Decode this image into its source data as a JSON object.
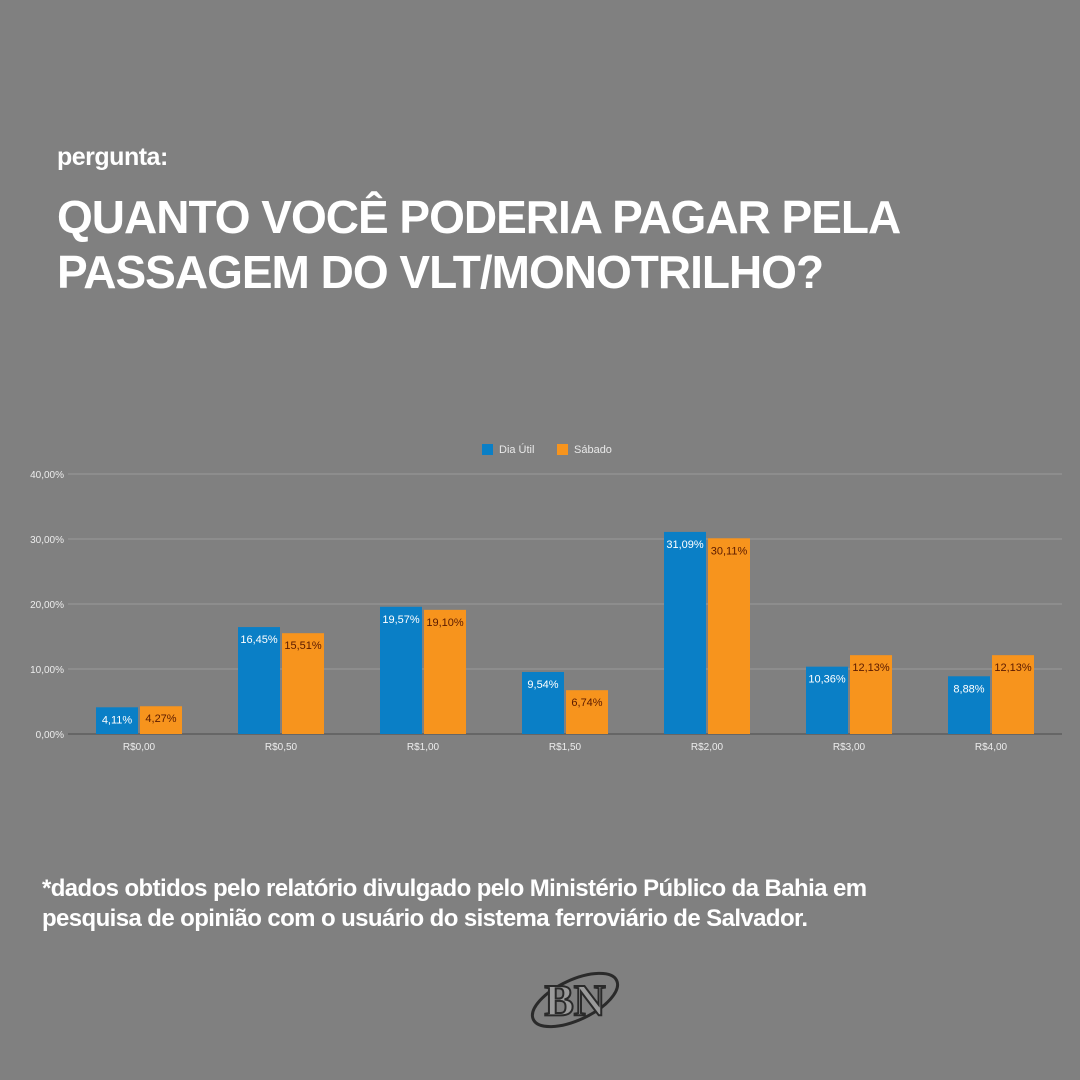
{
  "header": {
    "eyebrow": "pergunta:",
    "title_line1": "QUANTO VOCÊ PODERIA PAGAR PELA",
    "title_line2": "PASSAGEM DO VLT/MONOTRILHO?"
  },
  "chart_data": {
    "type": "bar",
    "title": "",
    "xlabel": "",
    "ylabel": "",
    "categories": [
      "R$0,00",
      "R$0,50",
      "R$1,00",
      "R$1,50",
      "R$2,00",
      "R$3,00",
      "R$4,00"
    ],
    "series": [
      {
        "name": "Dia Útil",
        "color": "#0a7fc6",
        "label_color": "#ffffff",
        "values": [
          4.11,
          16.45,
          19.57,
          9.54,
          31.09,
          10.36,
          8.88
        ],
        "labels": [
          "4,11%",
          "16,45%",
          "19,57%",
          "9,54%",
          "31,09%",
          "10,36%",
          "8,88%"
        ]
      },
      {
        "name": "Sábado",
        "color": "#f7941d",
        "label_color": "#5a1a00",
        "values": [
          4.27,
          15.51,
          19.1,
          6.74,
          30.11,
          12.13,
          12.13
        ],
        "labels": [
          "4,27%",
          "15,51%",
          "19,10%",
          "6,74%",
          "30,11%",
          "12,13%",
          "12,13%"
        ]
      }
    ],
    "ylim": [
      0,
      40
    ],
    "yticks": [
      0,
      10,
      20,
      30,
      40
    ],
    "ytick_labels": [
      "0,00%",
      "10,00%",
      "20,00%",
      "30,00%",
      "40,00%"
    ],
    "grid": true,
    "legend_position": "top-center"
  },
  "footnote": {
    "line1": "*dados obtidos pelo relatório divulgado pelo Ministério Público da Bahia em",
    "line2": "pesquisa de opinião com o usuário do sistema ferroviário de Salvador."
  },
  "logo": {
    "text": "BN"
  }
}
